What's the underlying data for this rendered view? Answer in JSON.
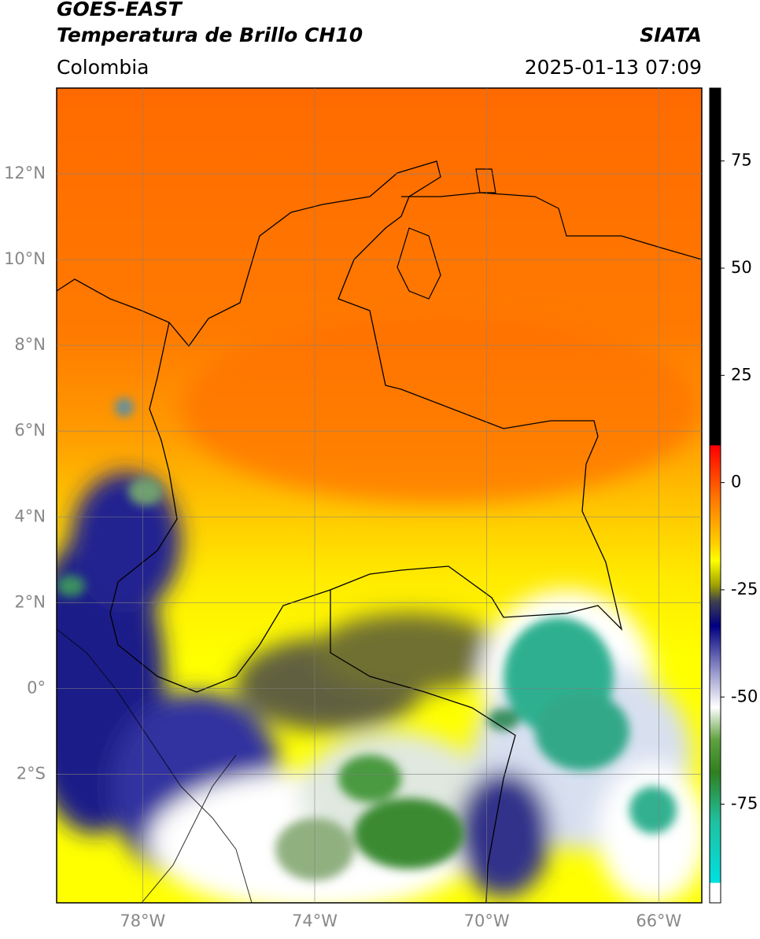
{
  "chart_data": {
    "type": "map",
    "title": "GOES-EAST",
    "subtitle": "Temperatura de Brillo CH10",
    "source": "SIATA",
    "region": "Colombia",
    "timestamp": "2025-01-13 07:09",
    "xlim": [
      -80,
      -65
    ],
    "ylim": [
      -5,
      14
    ],
    "xticks": [
      {
        "value": -78,
        "label": "78°W"
      },
      {
        "value": -74,
        "label": "74°W"
      },
      {
        "value": -70,
        "label": "70°W"
      },
      {
        "value": -66,
        "label": "66°W"
      }
    ],
    "yticks": [
      {
        "value": -2,
        "label": "2°S"
      },
      {
        "value": 0,
        "label": "0°"
      },
      {
        "value": 2,
        "label": "2°N"
      },
      {
        "value": 4,
        "label": "4°N"
      },
      {
        "value": 6,
        "label": "6°N"
      },
      {
        "value": 8,
        "label": "8°N"
      },
      {
        "value": 10,
        "label": "10°N"
      },
      {
        "value": 12,
        "label": "12°N"
      }
    ],
    "grid": true,
    "clim": [
      -98,
      92
    ],
    "cticks": [
      -75,
      -50,
      -25,
      0,
      25,
      50,
      75
    ]
  }
}
